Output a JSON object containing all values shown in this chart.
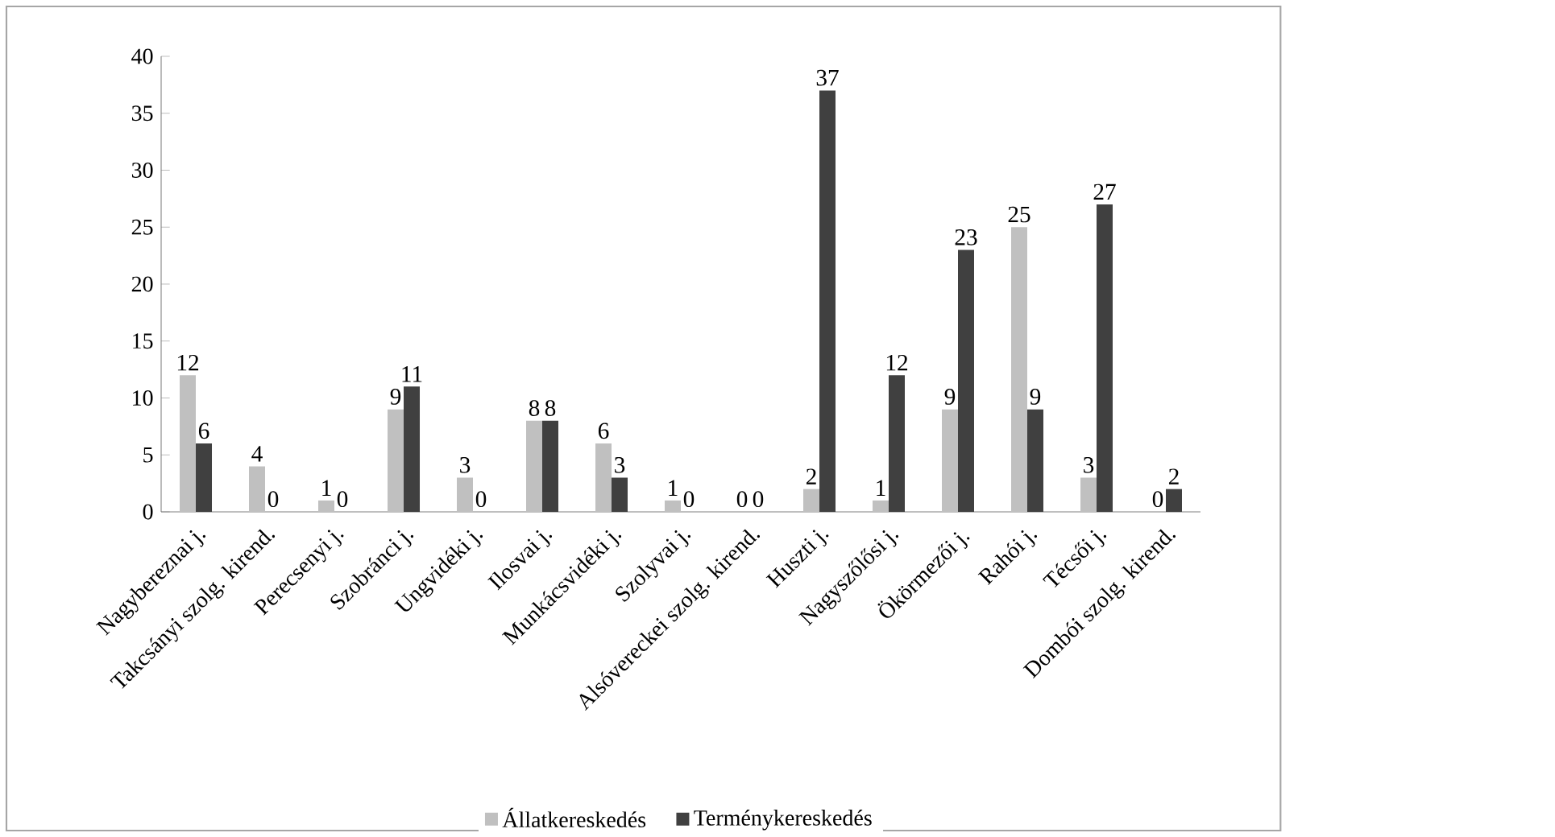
{
  "chart_data": {
    "type": "bar",
    "categories": [
      "Nagybereznai j.",
      "Takcsányi szolg. kirend.",
      "Perecsenyi j.",
      "Szobránci j.",
      "Ungvidéki j.",
      "Ilosvai j.",
      "Munkácsvidéki j.",
      "Szolyvai j.",
      "Alsóvereckei szolg. kirend.",
      "Huszti j.",
      "Nagyszőlősi j.",
      "Ökörmezői j.",
      "Rahói j.",
      "Técsői j.",
      "Dombói szolg. kirend."
    ],
    "series": [
      {
        "name": "Állatkereskedés",
        "color": "#c0c0c0",
        "values": [
          12,
          4,
          1,
          9,
          3,
          8,
          6,
          1,
          0,
          2,
          1,
          9,
          25,
          3,
          0
        ]
      },
      {
        "name": "Terménykereskedés",
        "color": "#404040",
        "values": [
          6,
          0,
          0,
          11,
          0,
          8,
          3,
          0,
          0,
          37,
          12,
          23,
          9,
          27,
          2
        ]
      }
    ],
    "ylim": [
      0,
      40
    ],
    "yticks": [
      0,
      5,
      10,
      15,
      20,
      25,
      30,
      35,
      40
    ],
    "data_labels": true,
    "grid": false,
    "legend": "bottom"
  }
}
